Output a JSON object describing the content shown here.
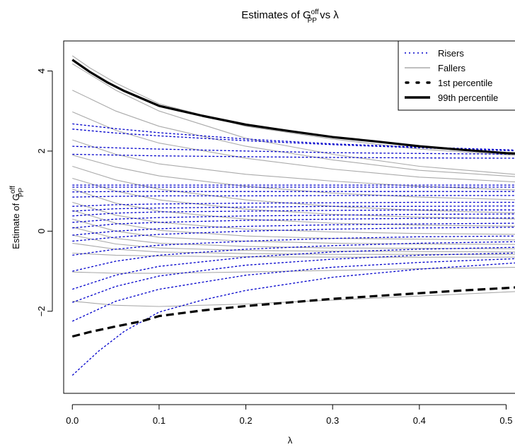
{
  "chart_data": {
    "type": "line",
    "title": {
      "main": "Estimates of G",
      "sup": "off",
      "sub": "PP",
      "rest": " vs λ"
    },
    "xlabel": "λ",
    "ylabel": {
      "main": "Estimate of G",
      "sup": "off",
      "sub": "PP"
    },
    "xlim": [
      -0.01,
      0.52
    ],
    "ylim": [
      -4.05,
      4.75
    ],
    "xticks": [
      0.0,
      0.1,
      0.2,
      0.3,
      0.4,
      0.5
    ],
    "xtick_labels": [
      "0.0",
      "0.1",
      "0.2",
      "0.3",
      "0.4",
      "0.5"
    ],
    "yticks": [
      -2,
      0,
      2,
      4
    ],
    "ytick_labels": [
      "−2",
      "0",
      "2",
      "4"
    ],
    "grid": false,
    "legend_position": "top-right",
    "colors": {
      "risers": "#0000cc",
      "fallers": "#aaaaaa",
      "percentiles": "#000000"
    },
    "legend": [
      {
        "label": "Risers",
        "style": "dotted",
        "color": "#0000cc"
      },
      {
        "label": "Fallers",
        "style": "solid",
        "color": "#aaaaaa"
      },
      {
        "label": "1st percentile",
        "style": "dashed-bold",
        "color": "#000000"
      },
      {
        "label": "99th percentile",
        "style": "solid-bold",
        "color": "#000000"
      }
    ],
    "series": [
      {
        "name": "99th percentile",
        "style": "solid-bold",
        "x": [
          0.0,
          0.01,
          0.02,
          0.04,
          0.06,
          0.1,
          0.15,
          0.2,
          0.25,
          0.3,
          0.35,
          0.4,
          0.45,
          0.5,
          0.52
        ],
        "y": [
          4.28,
          4.13,
          3.98,
          3.72,
          3.5,
          3.13,
          2.88,
          2.66,
          2.5,
          2.35,
          2.24,
          2.12,
          2.03,
          1.95,
          1.93
        ]
      },
      {
        "name": "1st percentile",
        "style": "dashed-bold",
        "x": [
          0.0,
          0.02,
          0.05,
          0.08,
          0.1,
          0.15,
          0.2,
          0.25,
          0.3,
          0.35,
          0.4,
          0.45,
          0.5,
          0.52
        ],
        "y": [
          -2.63,
          -2.52,
          -2.38,
          -2.25,
          -2.12,
          -1.98,
          -1.87,
          -1.78,
          -1.69,
          -1.62,
          -1.55,
          -1.48,
          -1.42,
          -1.39
        ]
      },
      {
        "name": "Fallers",
        "style": "solid",
        "lines": [
          {
            "x": [
              0.0,
              0.02,
              0.05,
              0.1,
              0.2,
              0.3,
              0.4,
              0.52
            ],
            "y": [
              4.38,
              4.08,
              3.7,
              3.18,
              2.62,
              2.3,
              2.05,
              1.88
            ]
          },
          {
            "x": [
              0.0,
              0.05,
              0.1,
              0.2,
              0.3,
              0.4,
              0.52
            ],
            "y": [
              4.18,
              3.52,
              3.0,
              2.32,
              1.92,
              1.62,
              1.4
            ]
          },
          {
            "x": [
              0.0,
              0.05,
              0.1,
              0.2,
              0.3,
              0.4,
              0.52
            ],
            "y": [
              3.52,
              3.0,
              2.62,
              2.12,
              1.78,
              1.52,
              1.35
            ]
          },
          {
            "x": [
              0.0,
              0.05,
              0.1,
              0.2,
              0.3,
              0.4,
              0.52
            ],
            "y": [
              2.98,
              2.52,
              2.2,
              1.82,
              1.55,
              1.35,
              1.22
            ]
          },
          {
            "x": [
              0.0,
              0.05,
              0.1,
              0.2,
              0.3,
              0.4,
              0.52
            ],
            "y": [
              2.28,
              1.92,
              1.68,
              1.42,
              1.25,
              1.12,
              1.02
            ]
          },
          {
            "x": [
              0.0,
              0.05,
              0.1,
              0.2,
              0.3,
              0.4,
              0.52
            ],
            "y": [
              1.9,
              1.6,
              1.38,
              1.12,
              0.95,
              0.85,
              0.78
            ]
          },
          {
            "x": [
              0.0,
              0.05,
              0.1,
              0.2,
              0.3,
              0.4,
              0.52
            ],
            "y": [
              1.62,
              1.28,
              1.05,
              0.78,
              0.62,
              0.52,
              0.45
            ]
          },
          {
            "x": [
              0.0,
              0.05,
              0.1,
              0.2,
              0.3,
              0.4,
              0.52
            ],
            "y": [
              1.32,
              1.0,
              0.78,
              0.55,
              0.42,
              0.35,
              0.3
            ]
          },
          {
            "x": [
              0.0,
              0.05,
              0.1,
              0.2,
              0.3,
              0.4,
              0.52
            ],
            "y": [
              1.05,
              0.7,
              0.5,
              0.3,
              0.2,
              0.15,
              0.12
            ]
          },
          {
            "x": [
              0.0,
              0.05,
              0.1,
              0.2,
              0.3,
              0.4,
              0.52
            ],
            "y": [
              0.72,
              0.4,
              0.22,
              0.05,
              -0.02,
              -0.06,
              -0.08
            ]
          },
          {
            "x": [
              0.0,
              0.05,
              0.1,
              0.2,
              0.3,
              0.4,
              0.52
            ],
            "y": [
              0.52,
              0.2,
              0.02,
              -0.12,
              -0.18,
              -0.2,
              -0.22
            ]
          },
          {
            "x": [
              0.0,
              0.05,
              0.1,
              0.2,
              0.3,
              0.4,
              0.52
            ],
            "y": [
              0.3,
              0.0,
              -0.15,
              -0.25,
              -0.3,
              -0.32,
              -0.33
            ]
          },
          {
            "x": [
              0.0,
              0.05,
              0.1,
              0.2,
              0.3,
              0.4,
              0.52
            ],
            "y": [
              0.1,
              -0.18,
              -0.3,
              -0.38,
              -0.42,
              -0.43,
              -0.44
            ]
          },
          {
            "x": [
              0.0,
              0.05,
              0.1,
              0.2,
              0.3,
              0.4,
              0.52
            ],
            "y": [
              -0.1,
              -0.32,
              -0.42,
              -0.48,
              -0.5,
              -0.51,
              -0.52
            ]
          },
          {
            "x": [
              0.0,
              0.05,
              0.1,
              0.2,
              0.3,
              0.4,
              0.52
            ],
            "y": [
              -0.3,
              -0.45,
              -0.52,
              -0.56,
              -0.58,
              -0.58,
              -0.58
            ]
          },
          {
            "x": [
              0.0,
              0.05,
              0.1,
              0.2,
              0.3,
              0.4,
              0.52
            ],
            "y": [
              -0.55,
              -0.6,
              -0.62,
              -0.64,
              -0.65,
              -0.65,
              -0.65
            ]
          },
          {
            "x": [
              0.0,
              0.05,
              0.1,
              0.2,
              0.3,
              0.4,
              0.52
            ],
            "y": [
              -1.02,
              -1.05,
              -1.05,
              -1.02,
              -0.98,
              -0.94,
              -0.9
            ]
          },
          {
            "x": [
              0.0,
              0.05,
              0.1,
              0.2,
              0.3,
              0.4,
              0.52
            ],
            "y": [
              -1.75,
              -1.85,
              -1.88,
              -1.82,
              -1.72,
              -1.62,
              -1.5
            ]
          }
        ]
      },
      {
        "name": "Risers",
        "style": "dotted",
        "lines": [
          {
            "x": [
              0.0,
              0.03,
              0.06,
              0.1,
              0.15,
              0.2,
              0.3,
              0.4,
              0.52
            ],
            "y": [
              -3.6,
              -3.0,
              -2.5,
              -2.02,
              -1.72,
              -1.48,
              -1.15,
              -0.95,
              -0.78
            ]
          },
          {
            "x": [
              0.0,
              0.05,
              0.1,
              0.2,
              0.3,
              0.4,
              0.52
            ],
            "y": [
              -2.25,
              -1.75,
              -1.45,
              -1.1,
              -0.9,
              -0.78,
              -0.68
            ]
          },
          {
            "x": [
              0.0,
              0.05,
              0.1,
              0.2,
              0.3,
              0.4,
              0.52
            ],
            "y": [
              -1.78,
              -1.38,
              -1.12,
              -0.85,
              -0.7,
              -0.6,
              -0.54
            ]
          },
          {
            "x": [
              0.0,
              0.05,
              0.1,
              0.2,
              0.3,
              0.4,
              0.52
            ],
            "y": [
              -1.45,
              -1.1,
              -0.88,
              -0.65,
              -0.52,
              -0.45,
              -0.4
            ]
          },
          {
            "x": [
              0.0,
              0.05,
              0.1,
              0.2,
              0.3,
              0.4,
              0.52
            ],
            "y": [
              -1.0,
              -0.75,
              -0.6,
              -0.45,
              -0.36,
              -0.3,
              -0.26
            ]
          },
          {
            "x": [
              0.0,
              0.05,
              0.1,
              0.2,
              0.3,
              0.4,
              0.52
            ],
            "y": [
              -0.6,
              -0.45,
              -0.35,
              -0.25,
              -0.18,
              -0.14,
              -0.12
            ]
          },
          {
            "x": [
              0.0,
              0.05,
              0.1,
              0.2,
              0.3,
              0.4,
              0.52
            ],
            "y": [
              -0.25,
              -0.15,
              -0.08,
              0.0,
              0.05,
              0.08,
              0.1
            ]
          },
          {
            "x": [
              0.0,
              0.05,
              0.1,
              0.2,
              0.3,
              0.4,
              0.52
            ],
            "y": [
              -0.1,
              0.0,
              0.06,
              0.12,
              0.16,
              0.18,
              0.2
            ]
          },
          {
            "x": [
              0.0,
              0.05,
              0.1,
              0.2,
              0.3,
              0.4,
              0.52
            ],
            "y": [
              0.08,
              0.18,
              0.22,
              0.27,
              0.3,
              0.32,
              0.33
            ]
          },
          {
            "x": [
              0.0,
              0.05,
              0.1,
              0.2,
              0.3,
              0.4,
              0.52
            ],
            "y": [
              0.22,
              0.3,
              0.34,
              0.38,
              0.4,
              0.42,
              0.43
            ]
          },
          {
            "x": [
              0.0,
              0.05,
              0.1,
              0.2,
              0.3,
              0.4,
              0.52
            ],
            "y": [
              0.38,
              0.45,
              0.48,
              0.5,
              0.52,
              0.53,
              0.53
            ]
          },
          {
            "x": [
              0.0,
              0.05,
              0.1,
              0.2,
              0.3,
              0.4,
              0.52
            ],
            "y": [
              0.5,
              0.56,
              0.58,
              0.6,
              0.62,
              0.62,
              0.63
            ]
          },
          {
            "x": [
              0.0,
              0.05,
              0.1,
              0.2,
              0.3,
              0.4,
              0.52
            ],
            "y": [
              0.62,
              0.66,
              0.68,
              0.7,
              0.71,
              0.72,
              0.72
            ]
          },
          {
            "x": [
              0.0,
              0.05,
              0.1,
              0.2,
              0.3,
              0.4,
              0.52
            ],
            "y": [
              0.85,
              0.87,
              0.88,
              0.88,
              0.89,
              0.89,
              0.89
            ]
          },
          {
            "x": [
              0.0,
              0.05,
              0.1,
              0.2,
              0.3,
              0.4,
              0.52
            ],
            "y": [
              0.98,
              0.99,
              0.99,
              0.99,
              0.99,
              0.99,
              0.99
            ]
          },
          {
            "x": [
              0.0,
              0.05,
              0.1,
              0.2,
              0.3,
              0.4,
              0.52
            ],
            "y": [
              1.1,
              1.1,
              1.1,
              1.1,
              1.1,
              1.1,
              1.1
            ]
          },
          {
            "x": [
              0.0,
              0.05,
              0.1,
              0.2,
              0.3,
              0.4,
              0.52
            ],
            "y": [
              1.15,
              1.15,
              1.15,
              1.15,
              1.15,
              1.15,
              1.15
            ]
          },
          {
            "x": [
              0.0,
              0.05,
              0.1,
              0.2,
              0.3,
              0.4,
              0.52
            ],
            "y": [
              1.92,
              1.9,
              1.88,
              1.86,
              1.84,
              1.83,
              1.82
            ]
          },
          {
            "x": [
              0.0,
              0.05,
              0.1,
              0.2,
              0.3,
              0.4,
              0.52
            ],
            "y": [
              2.12,
              2.08,
              2.05,
              2.0,
              1.96,
              1.94,
              1.92
            ]
          },
          {
            "x": [
              0.0,
              0.05,
              0.1,
              0.2,
              0.3,
              0.4,
              0.52
            ],
            "y": [
              2.55,
              2.45,
              2.38,
              2.26,
              2.16,
              2.08,
              2.0
            ]
          },
          {
            "x": [
              0.0,
              0.05,
              0.1,
              0.2,
              0.3,
              0.4,
              0.52
            ],
            "y": [
              2.68,
              2.56,
              2.46,
              2.3,
              2.18,
              2.1,
              2.02
            ]
          }
        ]
      }
    ]
  }
}
